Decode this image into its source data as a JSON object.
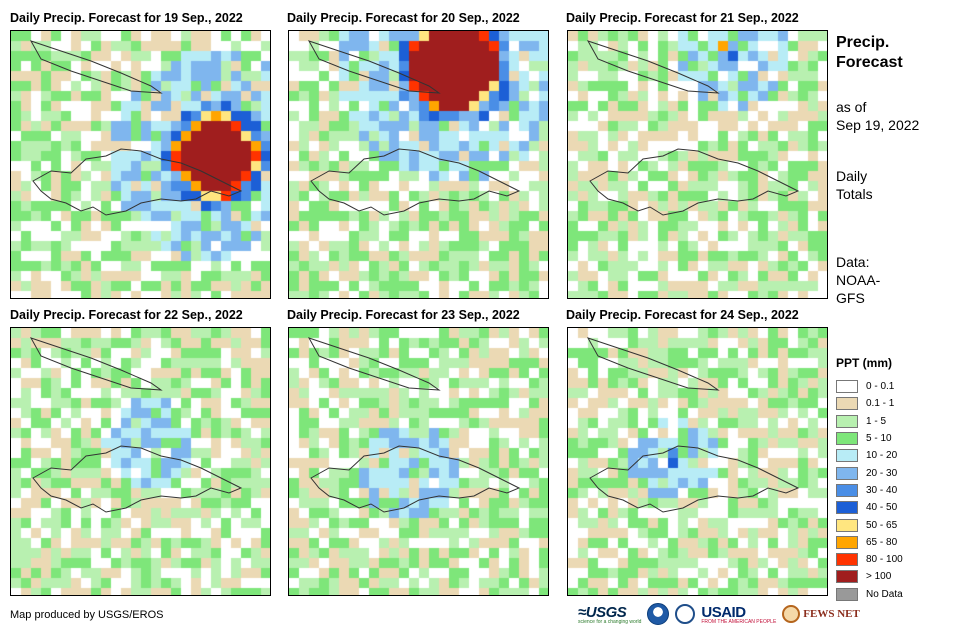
{
  "panels": [
    {
      "title": "Daily Precip. Forecast for 19 Sep., 2022",
      "storm_intensity": 1.0
    },
    {
      "title": "Daily Precip. Forecast for 20 Sep., 2022",
      "storm_intensity": 1.0
    },
    {
      "title": "Daily Precip. Forecast for 21 Sep., 2022",
      "storm_intensity": 0.5
    },
    {
      "title": "Daily Precip. Forecast for 22 Sep., 2022",
      "storm_intensity": 0.3
    },
    {
      "title": "Daily Precip. Forecast for 23 Sep., 2022",
      "storm_intensity": 0.4
    },
    {
      "title": "Daily Precip. Forecast for 24 Sep., 2022",
      "storm_intensity": 0.2
    }
  ],
  "sidebar": {
    "title_line1": "Precip.",
    "title_line2": "Forecast",
    "asof_line1": "as of",
    "asof_line2": "Sep 19, 2022",
    "totals_line1": "Daily",
    "totals_line2": "Totals",
    "data_line1": "Data:",
    "data_line2": "NOAA-",
    "data_line3": "GFS"
  },
  "legend": {
    "title": "PPT (mm)",
    "items": [
      {
        "label": "0 - 0.1",
        "color": "#ffffff"
      },
      {
        "label": "0.1 - 1",
        "color": "#ebd9b4"
      },
      {
        "label": "1 - 5",
        "color": "#b8f0b0"
      },
      {
        "label": "5 - 10",
        "color": "#7ee67a"
      },
      {
        "label": "10 - 20",
        "color": "#b8ecf6"
      },
      {
        "label": "20 - 30",
        "color": "#7fb6ee"
      },
      {
        "label": "30 - 40",
        "color": "#4a8ee6"
      },
      {
        "label": "40 - 50",
        "color": "#1c5fd6"
      },
      {
        "label": "50 - 65",
        "color": "#ffe680"
      },
      {
        "label": "65 - 80",
        "color": "#ffa500"
      },
      {
        "label": "80 - 100",
        "color": "#ff3300"
      },
      {
        "label": "> 100",
        "color": "#a01e1e"
      },
      {
        "label": "No Data",
        "color": "#999999"
      }
    ]
  },
  "credit": "Map produced by USGS/EROS",
  "logos": {
    "usgs": "≈USGS",
    "usgs_tagline": "science for a changing world",
    "usaid": "USAID",
    "usaid_tagline": "FROM THE AMERICAN PEOPLE",
    "fews": "FEWS NET"
  }
}
